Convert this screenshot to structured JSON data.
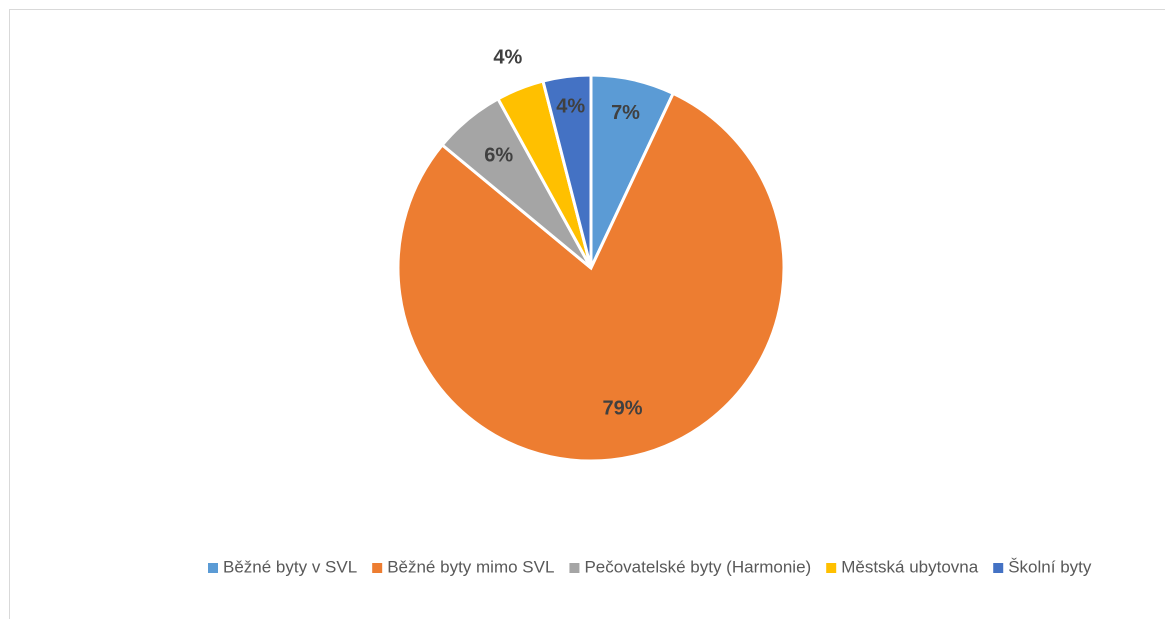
{
  "chart_data": {
    "type": "pie",
    "categories": [
      "Běžné byty v SVL",
      "Běžné byty mimo SVL",
      "Pečovatelské byty (Harmonie)",
      "Městská ubytovna",
      "Školní byty"
    ],
    "values": [
      7,
      79,
      6,
      4,
      4
    ],
    "value_labels": [
      "7%",
      "79%",
      "6%",
      "4%",
      "4%"
    ],
    "colors": [
      "#5b9bd5",
      "#ed7d31",
      "#a5a5a5",
      "#ffc000",
      "#4472c4"
    ],
    "legend": "bottom"
  }
}
